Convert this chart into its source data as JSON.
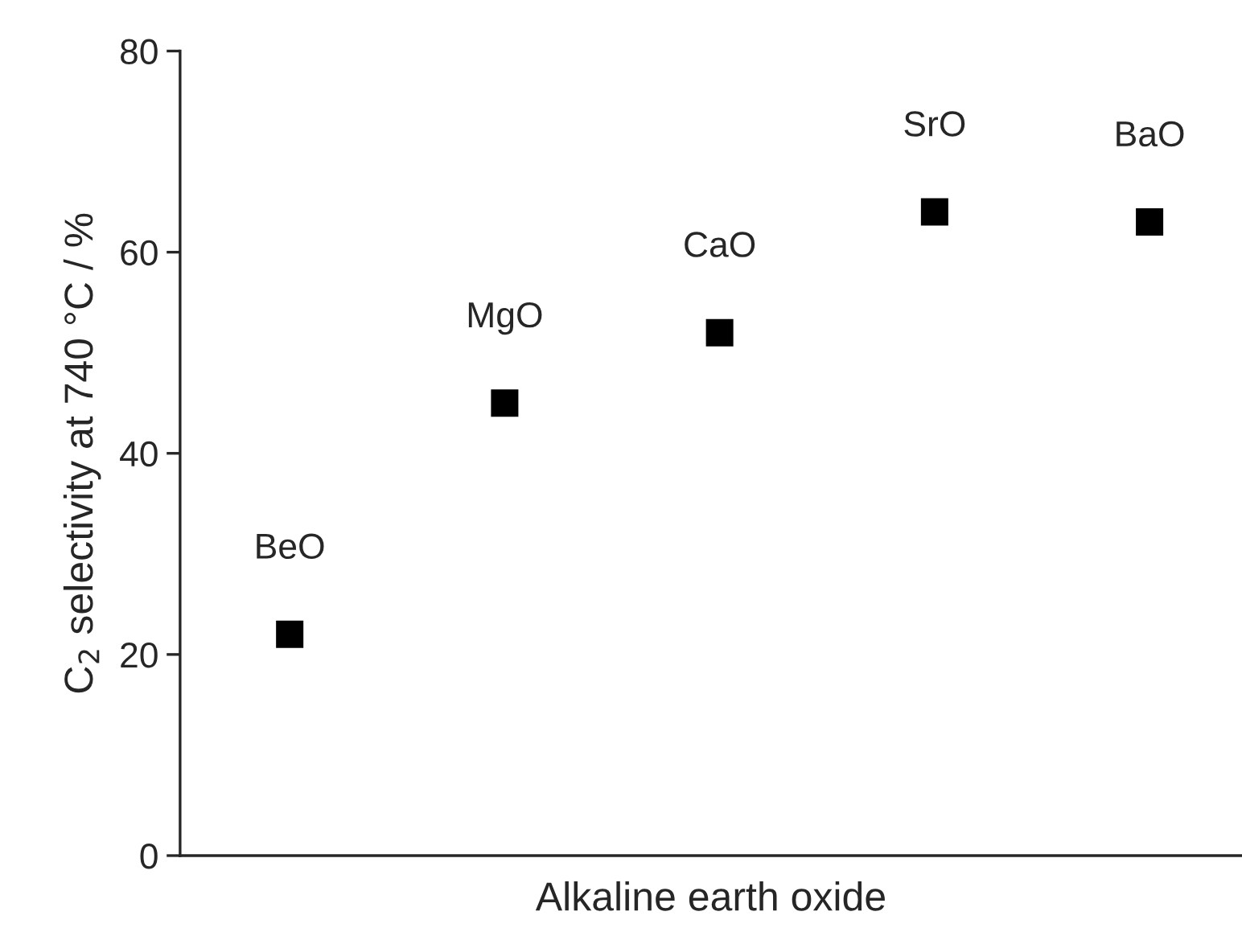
{
  "chart_data": {
    "type": "scatter",
    "xlabel": "Alkaline earth oxide",
    "ylabel": "C$_{2}$ selectivity at 740 °C / %",
    "categories": [
      "BeO",
      "MgO",
      "CaO",
      "SrO",
      "BaO"
    ],
    "series": [
      {
        "color": "#000000",
        "values": [
          22,
          45,
          52,
          64,
          63
        ]
      }
    ],
    "ylim": [
      0,
      80
    ],
    "yticks": [
      0,
      20,
      40,
      60,
      80
    ],
    "tick_labels": "y",
    "marker": "square",
    "grid": false,
    "legend": false
  }
}
